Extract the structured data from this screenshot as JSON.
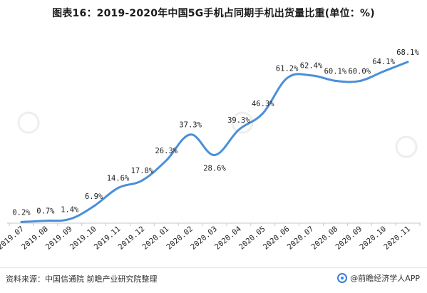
{
  "title": "图表16：2019-2020年中国5G手机占同期手机出货量比重(单位：%)",
  "footer": {
    "source": "资料来源：中国信通院 前瞻产业研究院整理",
    "brand": "@前瞻经济学人APP"
  },
  "colors": {
    "line": "#4a8fd9",
    "axis": "#c8c8c8",
    "text": "#222222"
  },
  "chart_data": {
    "type": "line",
    "categories": [
      "2019.07",
      "2019.08",
      "2019.09",
      "2019.10",
      "2019.11",
      "2019.12",
      "2020.01",
      "2020.02",
      "2020.03",
      "2020.04",
      "2020.05",
      "2020.06",
      "2020.07",
      "2020.08",
      "2020.09",
      "2020.10",
      "2020.11"
    ],
    "values": [
      0.2,
      0.7,
      1.4,
      6.9,
      14.6,
      17.8,
      26.3,
      37.3,
      28.6,
      39.3,
      46.3,
      61.2,
      62.4,
      60.1,
      60.0,
      64.1,
      68.1
    ],
    "labels": [
      "0.2%",
      "0.7%",
      "1.4%",
      "6.9%",
      "14.6%",
      "17.8%",
      "26.3%",
      "37.3%",
      "28.6%",
      "39.3%",
      "46.3%",
      "61.2%",
      "62.4%",
      "60.1%",
      "60.0%",
      "64.1%",
      "68.1%"
    ],
    "ylim": [
      0,
      72
    ],
    "smooth": true,
    "grid": false
  }
}
